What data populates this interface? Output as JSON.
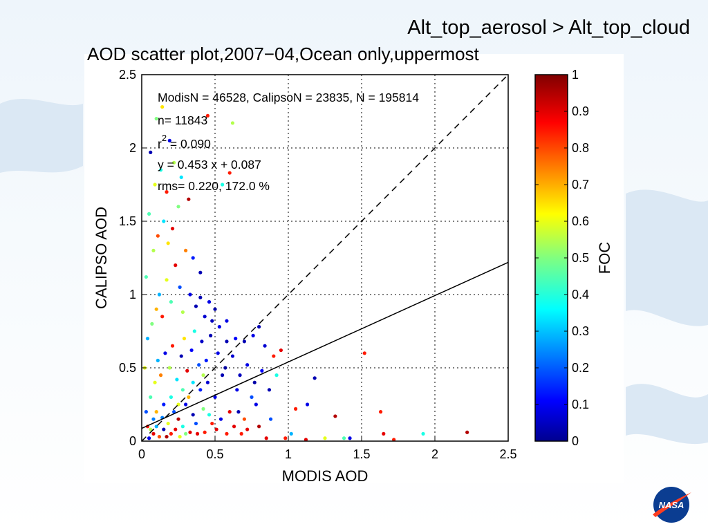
{
  "slide": {
    "title": "Alt_top_aerosol > Alt_top_cloud"
  },
  "logo": {
    "icon": "nasa-logo-icon",
    "text": "NASA"
  },
  "chart_data": {
    "type": "scatter",
    "title": "AOD scatter plot,2007−04,Ocean only,uppermost",
    "xlabel": "MODIS AOD",
    "ylabel": "CALIPSO AOD",
    "xlim": [
      0,
      2.5
    ],
    "ylim": [
      0,
      2.5
    ],
    "xticks": [
      "0",
      "0.5",
      "1",
      "1.5",
      "2",
      "2.5"
    ],
    "yticks": [
      "0",
      "0.5",
      "1",
      "1.5",
      "2",
      "2.5"
    ],
    "grid": true,
    "annotations": {
      "counts": "ModisN = 46528,  CalipsoN = 23835,  N = 195814",
      "n": "n= 11843",
      "r2_prefix": "r",
      "r2_exp": "2",
      "r2_value": " = 0.090",
      "fit_eq": "y = 0.453 x + 0.087",
      "rms": "rms= 0.220, 172.0 %"
    },
    "lines": [
      {
        "name": "one-to-one",
        "style": "dashed",
        "slope": 1.0,
        "intercept": 0.0
      },
      {
        "name": "regression-fit",
        "style": "solid",
        "slope": 0.453,
        "intercept": 0.087
      }
    ],
    "colorbar": {
      "label": "FOC",
      "min": 0,
      "max": 1,
      "ticks": [
        "0",
        "0.1",
        "0.2",
        "0.3",
        "0.4",
        "0.5",
        "0.6",
        "0.7",
        "0.8",
        "0.9",
        "1"
      ],
      "colormap": "jet"
    },
    "points": [
      [
        0.05,
        0.02,
        0.1
      ],
      [
        0.08,
        0.05,
        0.9
      ],
      [
        0.1,
        0.1,
        0.3
      ],
      [
        0.12,
        0.03,
        0.8
      ],
      [
        0.15,
        0.08,
        0.05
      ],
      [
        0.18,
        0.12,
        0.6
      ],
      [
        0.2,
        0.05,
        0.85
      ],
      [
        0.22,
        0.2,
        0.2
      ],
      [
        0.25,
        0.15,
        0.95
      ],
      [
        0.28,
        0.1,
        0.4
      ],
      [
        0.3,
        0.25,
        0.1
      ],
      [
        0.32,
        0.3,
        0.7
      ],
      [
        0.35,
        0.18,
        0.05
      ],
      [
        0.38,
        0.05,
        0.9
      ],
      [
        0.4,
        0.35,
        0.15
      ],
      [
        0.42,
        0.22,
        0.5
      ],
      [
        0.45,
        0.4,
        0.08
      ],
      [
        0.48,
        0.12,
        0.85
      ],
      [
        0.5,
        0.3,
        0.1
      ],
      [
        0.55,
        0.45,
        0.05
      ],
      [
        0.6,
        0.2,
        0.9
      ],
      [
        0.65,
        0.35,
        0.1
      ],
      [
        0.7,
        0.15,
        0.8
      ],
      [
        0.75,
        0.3,
        0.2
      ],
      [
        0.8,
        0.1,
        0.95
      ],
      [
        0.06,
        0.3,
        0.45
      ],
      [
        0.09,
        0.4,
        0.6
      ],
      [
        0.11,
        0.55,
        0.3
      ],
      [
        0.13,
        0.45,
        0.75
      ],
      [
        0.16,
        0.6,
        0.1
      ],
      [
        0.19,
        0.5,
        0.55
      ],
      [
        0.21,
        0.65,
        0.85
      ],
      [
        0.24,
        0.42,
        0.35
      ],
      [
        0.27,
        0.58,
        0.05
      ],
      [
        0.29,
        0.7,
        0.65
      ],
      [
        0.31,
        0.48,
        0.9
      ],
      [
        0.34,
        0.62,
        0.12
      ],
      [
        0.36,
        0.75,
        0.4
      ],
      [
        0.39,
        0.52,
        0.2
      ],
      [
        0.41,
        0.68,
        0.07
      ],
      [
        0.44,
        0.55,
        0.15
      ],
      [
        0.47,
        0.72,
        0.05
      ],
      [
        0.52,
        0.6,
        0.1
      ],
      [
        0.57,
        0.5,
        0.03
      ],
      [
        0.62,
        0.58,
        0.08
      ],
      [
        0.67,
        0.45,
        0.06
      ],
      [
        0.72,
        0.52,
        0.1
      ],
      [
        0.77,
        0.4,
        0.04
      ],
      [
        0.82,
        0.48,
        0.12
      ],
      [
        0.87,
        0.35,
        0.05
      ],
      [
        0.07,
        0.8,
        0.5
      ],
      [
        0.1,
        0.9,
        0.7
      ],
      [
        0.12,
        1.0,
        0.3
      ],
      [
        0.14,
        0.85,
        0.85
      ],
      [
        0.17,
        1.1,
        0.6
      ],
      [
        0.2,
        0.95,
        0.45
      ],
      [
        0.23,
        1.2,
        0.9
      ],
      [
        0.26,
        1.05,
        0.2
      ],
      [
        0.28,
        0.88,
        0.55
      ],
      [
        0.33,
        1.0,
        0.1
      ],
      [
        0.37,
        0.92,
        0.05
      ],
      [
        0.43,
        0.85,
        0.08
      ],
      [
        0.5,
        0.9,
        0.04
      ],
      [
        0.58,
        0.82,
        0.1
      ],
      [
        0.08,
        1.3,
        0.55
      ],
      [
        0.11,
        1.4,
        0.8
      ],
      [
        0.15,
        1.5,
        0.35
      ],
      [
        0.18,
        1.35,
        0.65
      ],
      [
        0.21,
        1.45,
        0.9
      ],
      [
        0.25,
        1.6,
        0.5
      ],
      [
        0.3,
        1.3,
        0.75
      ],
      [
        0.35,
        1.25,
        0.15
      ],
      [
        0.4,
        1.15,
        0.05
      ],
      [
        0.05,
        1.55,
        0.45
      ],
      [
        0.09,
        1.75,
        0.6
      ],
      [
        0.13,
        1.85,
        0.4
      ],
      [
        0.17,
        1.7,
        0.85
      ],
      [
        0.22,
        1.9,
        0.55
      ],
      [
        0.27,
        1.8,
        0.35
      ],
      [
        0.32,
        1.65,
        0.95
      ],
      [
        0.06,
        1.97,
        0.05
      ],
      [
        0.1,
        2.2,
        0.5
      ],
      [
        0.14,
        2.28,
        0.65
      ],
      [
        0.45,
        2.22,
        0.85
      ],
      [
        0.62,
        2.17,
        0.55
      ],
      [
        0.6,
        1.83,
        0.85
      ],
      [
        0.55,
        1.75,
        0.4
      ],
      [
        0.19,
        2.05,
        0.1
      ],
      [
        0.03,
        1.12,
        0.45
      ],
      [
        0.04,
        0.7,
        0.3
      ],
      [
        0.02,
        0.5,
        0.6
      ],
      [
        0.03,
        0.2,
        0.2
      ],
      [
        0.04,
        0.1,
        0.85
      ],
      [
        0.9,
        0.58,
        0.85
      ],
      [
        0.95,
        0.62,
        0.9
      ],
      [
        0.92,
        0.45,
        0.4
      ],
      [
        1.05,
        0.22,
        0.85
      ],
      [
        1.18,
        0.43,
        0.05
      ],
      [
        1.13,
        0.25,
        0.1
      ],
      [
        1.32,
        0.17,
        0.95
      ],
      [
        1.38,
        0.02,
        0.45
      ],
      [
        1.42,
        0.02,
        0.1
      ],
      [
        1.52,
        0.6,
        0.85
      ],
      [
        1.63,
        0.2,
        0.85
      ],
      [
        1.65,
        0.05,
        0.9
      ],
      [
        1.92,
        0.05,
        0.4
      ],
      [
        2.22,
        0.06,
        0.95
      ],
      [
        1.72,
        0.01,
        0.85
      ],
      [
        1.12,
        0.01,
        0.9
      ],
      [
        1.25,
        0.02,
        0.6
      ],
      [
        0.98,
        0.02,
        0.85
      ],
      [
        1.02,
        0.05,
        0.3
      ],
      [
        0.85,
        0.02,
        0.9
      ],
      [
        0.88,
        0.15,
        0.2
      ],
      [
        0.78,
        0.25,
        0.1
      ],
      [
        0.72,
        0.08,
        0.9
      ],
      [
        0.68,
        0.05,
        0.85
      ],
      [
        0.66,
        0.2,
        0.05
      ],
      [
        0.63,
        0.1,
        0.9
      ],
      [
        0.58,
        0.05,
        0.85
      ],
      [
        0.54,
        0.15,
        0.1
      ],
      [
        0.51,
        0.08,
        0.9
      ],
      [
        0.46,
        0.18,
        0.4
      ],
      [
        0.43,
        0.06,
        0.85
      ],
      [
        0.37,
        0.12,
        0.2
      ],
      [
        0.33,
        0.06,
        0.9
      ],
      [
        0.26,
        0.03,
        0.6
      ],
      [
        0.23,
        0.08,
        0.9
      ],
      [
        0.17,
        0.03,
        0.95
      ],
      [
        0.14,
        0.16,
        0.25
      ],
      [
        0.7,
        0.68,
        0.05
      ],
      [
        0.76,
        0.72,
        0.1
      ],
      [
        0.8,
        0.78,
        0.05
      ],
      [
        0.84,
        0.65,
        0.08
      ],
      [
        0.64,
        0.7,
        0.12
      ],
      [
        0.58,
        0.68,
        0.05
      ],
      [
        0.53,
        0.78,
        0.1
      ],
      [
        0.48,
        0.82,
        0.06
      ],
      [
        0.46,
        0.95,
        0.1
      ],
      [
        0.4,
        0.98,
        0.05
      ],
      [
        0.3,
        0.05,
        0.5
      ],
      [
        0.25,
        0.25,
        0.6
      ],
      [
        0.2,
        0.3,
        0.4
      ],
      [
        0.15,
        0.25,
        0.15
      ],
      [
        0.1,
        0.2,
        0.7
      ],
      [
        0.08,
        0.15,
        0.25
      ],
      [
        0.06,
        0.08,
        0.55
      ],
      [
        0.35,
        0.4,
        0.35
      ],
      [
        0.42,
        0.45,
        0.55
      ],
      [
        0.28,
        0.35,
        0.45
      ]
    ]
  }
}
